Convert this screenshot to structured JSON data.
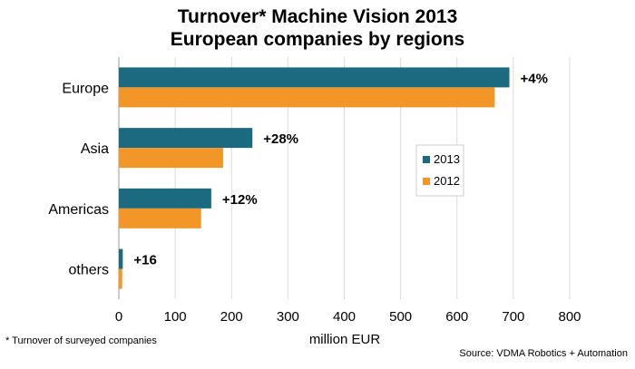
{
  "chart_data": {
    "type": "bar",
    "orientation": "horizontal",
    "title_lines": [
      "Turnover* Machine Vision 2013",
      "European companies by regions"
    ],
    "categories": [
      "Europe",
      "Asia",
      "Americas",
      "others"
    ],
    "series": [
      {
        "name": "2013",
        "color": "#1b6a80",
        "values": [
          693,
          237,
          164,
          7
        ]
      },
      {
        "name": "2012",
        "color": "#f29727",
        "values": [
          667,
          185,
          146,
          6
        ]
      }
    ],
    "annotations": [
      "+4%",
      "+28%",
      "+12%",
      "+16"
    ],
    "xlabel": "million EUR",
    "xlim": [
      0,
      800
    ],
    "xticks": [
      0,
      100,
      200,
      300,
      400,
      500,
      600,
      700,
      800
    ],
    "legend": [
      "2013",
      "2012"
    ],
    "legend_position": "right",
    "grid": true
  },
  "footnote": "* Turnover of  surveyed companies",
  "source": "Source: VDMA Robotics + Automation"
}
